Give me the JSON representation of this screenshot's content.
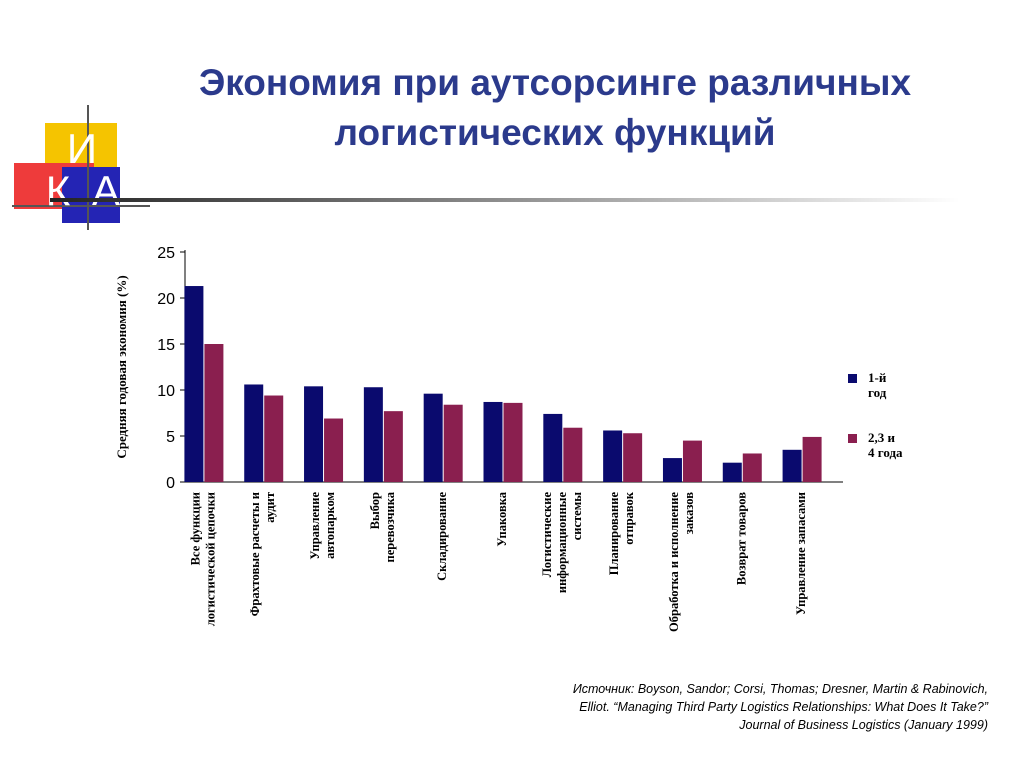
{
  "slide": {
    "title_lines": [
      "Экономия при аутсорсинге различных",
      "логистических функций"
    ],
    "logo_letters": [
      "И",
      "К",
      "А"
    ],
    "source_lines": [
      "Источник: Boyson, Sandor; Corsi, Thomas; Dresner, Martin & Rabinovich,",
      "Elliot. “Managing Third Party Logistics Relationships: What Does It Take?”",
      "Journal of Business Logistics (January 1999)"
    ]
  },
  "colors": {
    "title": "#2b3a8c",
    "series1": "#0a0a6e",
    "series2": "#8a1f4f",
    "logo_yellow": "#f5c400",
    "logo_red": "#ee3b3b",
    "logo_blue": "#2424b4"
  },
  "chart_data": {
    "type": "bar",
    "ylabel": "Средняя годовая  экономия (%)",
    "ylim": [
      0,
      25
    ],
    "yticks": [
      0,
      5,
      10,
      15,
      20,
      25
    ],
    "legend_position": "right",
    "categories": [
      [
        "Все функции",
        "логистической цепочки"
      ],
      [
        "Фрахтовые расчеты и",
        "аудит"
      ],
      [
        "Управление",
        "автопарком"
      ],
      [
        "Выбор",
        "перевозчика"
      ],
      [
        "Складирование"
      ],
      [
        "Упаковка"
      ],
      [
        "Логистические",
        "информационные",
        "системы"
      ],
      [
        "Планирование",
        "отправок"
      ],
      [
        "Обработка и исполнение",
        "заказов"
      ],
      [
        "Возврат товаров"
      ],
      [
        "Управление запасами"
      ]
    ],
    "series": [
      {
        "name": [
          "1-й",
          "год"
        ],
        "values": [
          21.3,
          10.6,
          10.4,
          10.3,
          9.6,
          8.7,
          7.4,
          5.6,
          2.6,
          2.1,
          3.5
        ]
      },
      {
        "name": [
          "2,3 и",
          "4 года"
        ],
        "values": [
          15.0,
          9.4,
          6.9,
          7.7,
          8.4,
          8.6,
          5.9,
          5.3,
          4.5,
          3.1,
          4.9
        ]
      }
    ]
  }
}
